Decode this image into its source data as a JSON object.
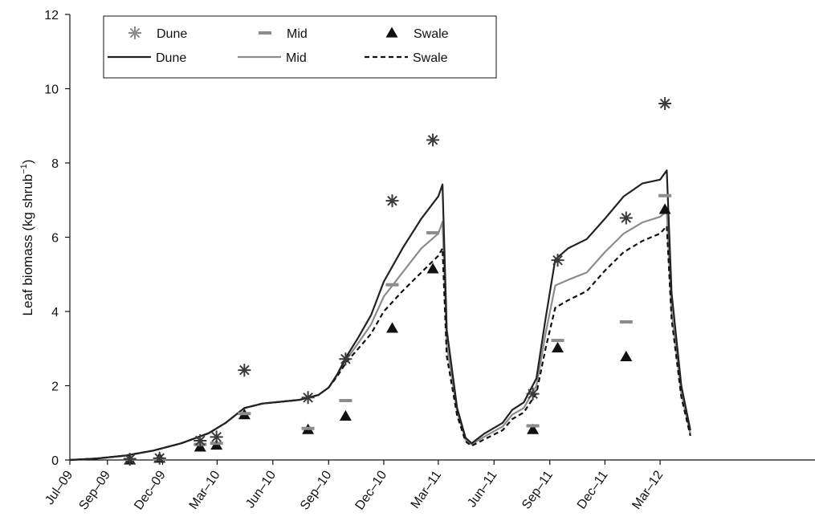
{
  "chart_data": {
    "type": "line",
    "title": "",
    "xlabel": "",
    "ylabel": "Leaf biomass (kg shrub",
    "ylabel_sup": "−1",
    "ylabel_end": ")",
    "ylim": [
      0,
      12
    ],
    "yticks": [
      0,
      2,
      4,
      6,
      8,
      10,
      12
    ],
    "xlim": [
      "2009-07-01",
      "2012-05-01"
    ],
    "xticks": [
      {
        "date": "2009-07-01",
        "label": "Jul–09"
      },
      {
        "date": "2009-09-01",
        "label": "Sep–09"
      },
      {
        "date": "2009-12-01",
        "label": "Dec–09"
      },
      {
        "date": "2010-03-01",
        "label": "Mar–10"
      },
      {
        "date": "2010-06-01",
        "label": "Jun–10"
      },
      {
        "date": "2010-09-01",
        "label": "Sep–10"
      },
      {
        "date": "2010-12-01",
        "label": "Dec–10"
      },
      {
        "date": "2011-03-01",
        "label": "Mar–11"
      },
      {
        "date": "2011-06-01",
        "label": "Jun–11"
      },
      {
        "date": "2011-09-01",
        "label": "Sep–11"
      },
      {
        "date": "2011-12-01",
        "label": "Dec–11"
      },
      {
        "date": "2012-03-01",
        "label": "Mar–12"
      }
    ],
    "grid": false,
    "legend_position": "top-left",
    "legend": [
      {
        "label": "Dune",
        "kind": "marker",
        "marker": "asterisk",
        "color": "#8c8c8c"
      },
      {
        "label": "Mid",
        "kind": "marker",
        "marker": "dash",
        "color": "#8c8c8c"
      },
      {
        "label": "Swale",
        "kind": "marker",
        "marker": "triangle",
        "color": "#111111"
      },
      {
        "label": "Dune",
        "kind": "line",
        "dash": "solid",
        "color": "#222222"
      },
      {
        "label": "Mid",
        "kind": "line",
        "dash": "solid",
        "color": "#8c8c8c"
      },
      {
        "label": "Swale",
        "kind": "line",
        "dash": "dashed",
        "color": "#111111"
      }
    ],
    "observed": [
      {
        "name": "Dune",
        "marker": "asterisk",
        "color": "#3a3a3a",
        "points": [
          [
            "2009-10-08",
            0.02
          ],
          [
            "2009-11-26",
            0.05
          ],
          [
            "2010-02-01",
            0.52
          ],
          [
            "2010-02-28",
            0.62
          ],
          [
            "2010-04-15",
            2.42
          ],
          [
            "2010-07-29",
            1.68
          ],
          [
            "2010-09-29",
            2.72
          ],
          [
            "2010-12-15",
            6.98
          ],
          [
            "2011-02-20",
            8.62
          ],
          [
            "2011-08-04",
            1.78
          ],
          [
            "2011-09-14",
            5.38
          ],
          [
            "2012-01-05",
            6.52
          ],
          [
            "2012-03-09",
            9.6
          ]
        ]
      },
      {
        "name": "Mid",
        "marker": "dash",
        "color": "#8c8c8c",
        "points": [
          [
            "2009-10-08",
            0.02
          ],
          [
            "2009-11-26",
            0.02
          ],
          [
            "2010-02-01",
            0.42
          ],
          [
            "2010-02-28",
            0.45
          ],
          [
            "2010-04-15",
            1.25
          ],
          [
            "2010-07-29",
            0.85
          ],
          [
            "2010-09-29",
            1.6
          ],
          [
            "2010-12-15",
            4.72
          ],
          [
            "2011-02-20",
            6.12
          ],
          [
            "2011-08-04",
            0.92
          ],
          [
            "2011-09-14",
            3.22
          ],
          [
            "2012-01-05",
            3.72
          ],
          [
            "2012-03-09",
            7.12
          ]
        ]
      },
      {
        "name": "Swale",
        "marker": "triangle",
        "color": "#111111",
        "points": [
          [
            "2009-10-08",
            0.0
          ],
          [
            "2009-11-26",
            0.05
          ],
          [
            "2010-02-01",
            0.35
          ],
          [
            "2010-02-28",
            0.4
          ],
          [
            "2010-04-15",
            1.22
          ],
          [
            "2010-07-29",
            0.82
          ],
          [
            "2010-09-29",
            1.18
          ],
          [
            "2010-12-15",
            3.55
          ],
          [
            "2011-02-20",
            5.15
          ],
          [
            "2011-08-04",
            0.82
          ],
          [
            "2011-09-14",
            3.02
          ],
          [
            "2012-01-05",
            2.78
          ],
          [
            "2012-03-09",
            6.75
          ]
        ]
      }
    ],
    "modeled": [
      {
        "name": "Dune",
        "color": "#222222",
        "dash": "solid",
        "points": [
          [
            "2009-07-01",
            0.0
          ],
          [
            "2009-08-15",
            0.04
          ],
          [
            "2009-10-01",
            0.12
          ],
          [
            "2009-11-15",
            0.25
          ],
          [
            "2010-01-01",
            0.45
          ],
          [
            "2010-02-15",
            0.72
          ],
          [
            "2010-03-15",
            1.0
          ],
          [
            "2010-04-01",
            1.22
          ],
          [
            "2010-04-15",
            1.4
          ],
          [
            "2010-05-15",
            1.52
          ],
          [
            "2010-06-15",
            1.57
          ],
          [
            "2010-07-15",
            1.62
          ],
          [
            "2010-08-15",
            1.75
          ],
          [
            "2010-09-01",
            1.95
          ],
          [
            "2010-09-15",
            2.3
          ],
          [
            "2010-10-01",
            2.8
          ],
          [
            "2010-10-20",
            3.3
          ],
          [
            "2010-11-10",
            3.9
          ],
          [
            "2010-12-01",
            4.8
          ],
          [
            "2011-01-01",
            5.7
          ],
          [
            "2011-02-01",
            6.5
          ],
          [
            "2011-03-01",
            7.1
          ],
          [
            "2011-03-08",
            7.42
          ],
          [
            "2011-03-15",
            3.5
          ],
          [
            "2011-04-01",
            1.4
          ],
          [
            "2011-04-15",
            0.6
          ],
          [
            "2011-04-25",
            0.45
          ],
          [
            "2011-05-15",
            0.7
          ],
          [
            "2011-06-15",
            1.0
          ],
          [
            "2011-07-01",
            1.35
          ],
          [
            "2011-07-20",
            1.55
          ],
          [
            "2011-08-10",
            2.2
          ],
          [
            "2011-08-25",
            3.8
          ],
          [
            "2011-09-10",
            5.4
          ],
          [
            "2011-10-01",
            5.7
          ],
          [
            "2011-11-01",
            5.95
          ],
          [
            "2011-12-01",
            6.5
          ],
          [
            "2012-01-01",
            7.1
          ],
          [
            "2012-02-01",
            7.45
          ],
          [
            "2012-03-01",
            7.55
          ],
          [
            "2012-03-12",
            7.8
          ],
          [
            "2012-03-20",
            4.5
          ],
          [
            "2012-04-05",
            2.0
          ],
          [
            "2012-04-20",
            0.8
          ]
        ]
      },
      {
        "name": "Mid",
        "color": "#8c8c8c",
        "dash": "solid",
        "points": [
          [
            "2009-07-01",
            0.0
          ],
          [
            "2009-08-15",
            0.04
          ],
          [
            "2009-10-01",
            0.12
          ],
          [
            "2009-11-15",
            0.25
          ],
          [
            "2010-01-01",
            0.45
          ],
          [
            "2010-02-15",
            0.72
          ],
          [
            "2010-03-15",
            1.0
          ],
          [
            "2010-04-01",
            1.22
          ],
          [
            "2010-04-15",
            1.4
          ],
          [
            "2010-05-15",
            1.52
          ],
          [
            "2010-06-15",
            1.57
          ],
          [
            "2010-07-15",
            1.62
          ],
          [
            "2010-08-15",
            1.75
          ],
          [
            "2010-09-01",
            1.95
          ],
          [
            "2010-09-15",
            2.28
          ],
          [
            "2010-10-01",
            2.72
          ],
          [
            "2010-10-20",
            3.15
          ],
          [
            "2010-11-10",
            3.65
          ],
          [
            "2010-12-01",
            4.4
          ],
          [
            "2011-01-01",
            5.05
          ],
          [
            "2011-02-01",
            5.7
          ],
          [
            "2011-03-01",
            6.1
          ],
          [
            "2011-03-08",
            6.42
          ],
          [
            "2011-03-15",
            3.1
          ],
          [
            "2011-04-01",
            1.3
          ],
          [
            "2011-04-15",
            0.55
          ],
          [
            "2011-04-25",
            0.42
          ],
          [
            "2011-05-15",
            0.62
          ],
          [
            "2011-06-15",
            0.9
          ],
          [
            "2011-07-01",
            1.22
          ],
          [
            "2011-07-20",
            1.4
          ],
          [
            "2011-08-10",
            2.0
          ],
          [
            "2011-08-25",
            3.4
          ],
          [
            "2011-09-10",
            4.7
          ],
          [
            "2011-10-01",
            4.85
          ],
          [
            "2011-11-01",
            5.05
          ],
          [
            "2011-12-01",
            5.6
          ],
          [
            "2012-01-01",
            6.1
          ],
          [
            "2012-02-01",
            6.4
          ],
          [
            "2012-03-01",
            6.55
          ],
          [
            "2012-03-12",
            6.7
          ],
          [
            "2012-03-20",
            4.0
          ],
          [
            "2012-04-05",
            1.8
          ],
          [
            "2012-04-20",
            0.7
          ]
        ]
      },
      {
        "name": "Swale",
        "color": "#111111",
        "dash": "dashed",
        "points": [
          [
            "2009-07-01",
            0.0
          ],
          [
            "2009-08-15",
            0.04
          ],
          [
            "2009-10-01",
            0.12
          ],
          [
            "2009-11-15",
            0.25
          ],
          [
            "2010-01-01",
            0.45
          ],
          [
            "2010-02-15",
            0.72
          ],
          [
            "2010-03-15",
            1.0
          ],
          [
            "2010-04-01",
            1.22
          ],
          [
            "2010-04-15",
            1.4
          ],
          [
            "2010-05-15",
            1.52
          ],
          [
            "2010-06-15",
            1.57
          ],
          [
            "2010-07-15",
            1.62
          ],
          [
            "2010-08-15",
            1.75
          ],
          [
            "2010-09-01",
            1.95
          ],
          [
            "2010-09-15",
            2.25
          ],
          [
            "2010-10-01",
            2.65
          ],
          [
            "2010-10-20",
            3.0
          ],
          [
            "2010-11-10",
            3.4
          ],
          [
            "2010-12-01",
            4.0
          ],
          [
            "2011-01-01",
            4.55
          ],
          [
            "2011-02-01",
            5.05
          ],
          [
            "2011-03-01",
            5.5
          ],
          [
            "2011-03-08",
            5.7
          ],
          [
            "2011-03-15",
            2.8
          ],
          [
            "2011-04-01",
            1.2
          ],
          [
            "2011-04-15",
            0.5
          ],
          [
            "2011-04-25",
            0.38
          ],
          [
            "2011-05-15",
            0.55
          ],
          [
            "2011-06-15",
            0.8
          ],
          [
            "2011-07-01",
            1.1
          ],
          [
            "2011-07-20",
            1.28
          ],
          [
            "2011-08-10",
            1.8
          ],
          [
            "2011-08-25",
            3.0
          ],
          [
            "2011-09-10",
            4.1
          ],
          [
            "2011-10-01",
            4.3
          ],
          [
            "2011-11-01",
            4.55
          ],
          [
            "2011-12-01",
            5.1
          ],
          [
            "2012-01-01",
            5.6
          ],
          [
            "2012-02-01",
            5.9
          ],
          [
            "2012-03-01",
            6.1
          ],
          [
            "2012-03-12",
            6.3
          ],
          [
            "2012-03-20",
            3.8
          ],
          [
            "2012-04-05",
            1.7
          ],
          [
            "2012-04-20",
            0.65
          ]
        ]
      }
    ]
  }
}
